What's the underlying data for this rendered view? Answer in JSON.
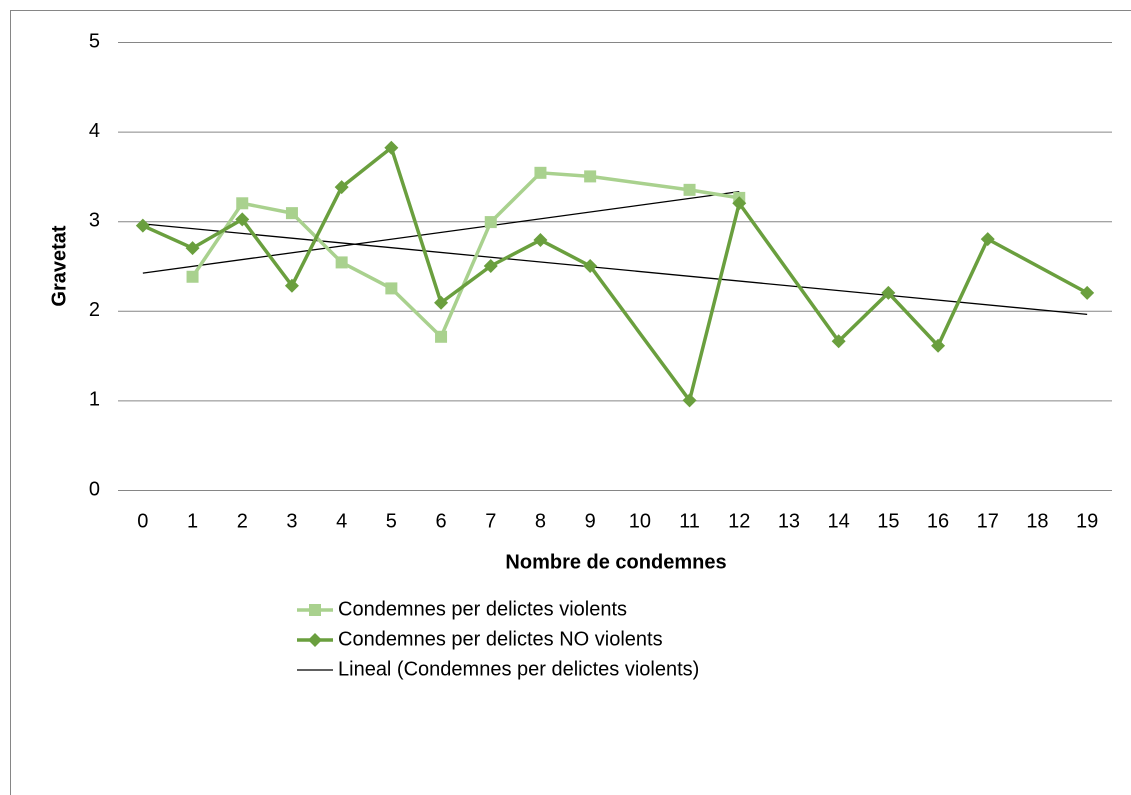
{
  "chart_data": {
    "type": "line",
    "x_label": "Nombre de condemnes",
    "y_label": "Gravetat",
    "categories": [
      "0",
      "1",
      "2",
      "3",
      "4",
      "5",
      "6",
      "7",
      "8",
      "9",
      "10",
      "11",
      "12",
      "13",
      "14",
      "15",
      "16",
      "17",
      "18",
      "19"
    ],
    "series": [
      {
        "name": "Condemnes per delictes violents",
        "color": "#a9d18e",
        "marker": "square",
        "values": [
          null,
          2.38,
          3.2,
          3.09,
          2.54,
          2.25,
          1.71,
          2.99,
          3.54,
          3.5,
          null,
          3.35,
          3.26,
          null,
          null,
          null,
          null,
          null,
          null,
          null
        ]
      },
      {
        "name": "Condemnes per delictes NO violents",
        "color": "#6a9f3e",
        "marker": "diamond",
        "values": [
          2.95,
          2.7,
          3.02,
          2.28,
          3.38,
          3.82,
          2.09,
          2.5,
          2.79,
          2.5,
          null,
          1.0,
          3.2,
          null,
          1.66,
          2.2,
          1.61,
          2.8,
          null,
          2.2
        ]
      }
    ],
    "connect_gaps": true,
    "trendlines": [
      {
        "name": "Lineal (Condemnes per delictes violents)",
        "color": "#000000",
        "x": [
          0,
          12
        ],
        "values": [
          2.42,
          3.33
        ]
      },
      {
        "color": "#000000",
        "x": [
          0,
          19
        ],
        "values": [
          2.97,
          1.96
        ]
      }
    ],
    "ylim": [
      0,
      5
    ],
    "yticks": [
      0,
      1,
      2,
      3,
      4,
      5
    ],
    "grid": true,
    "legend": "bottom"
  }
}
